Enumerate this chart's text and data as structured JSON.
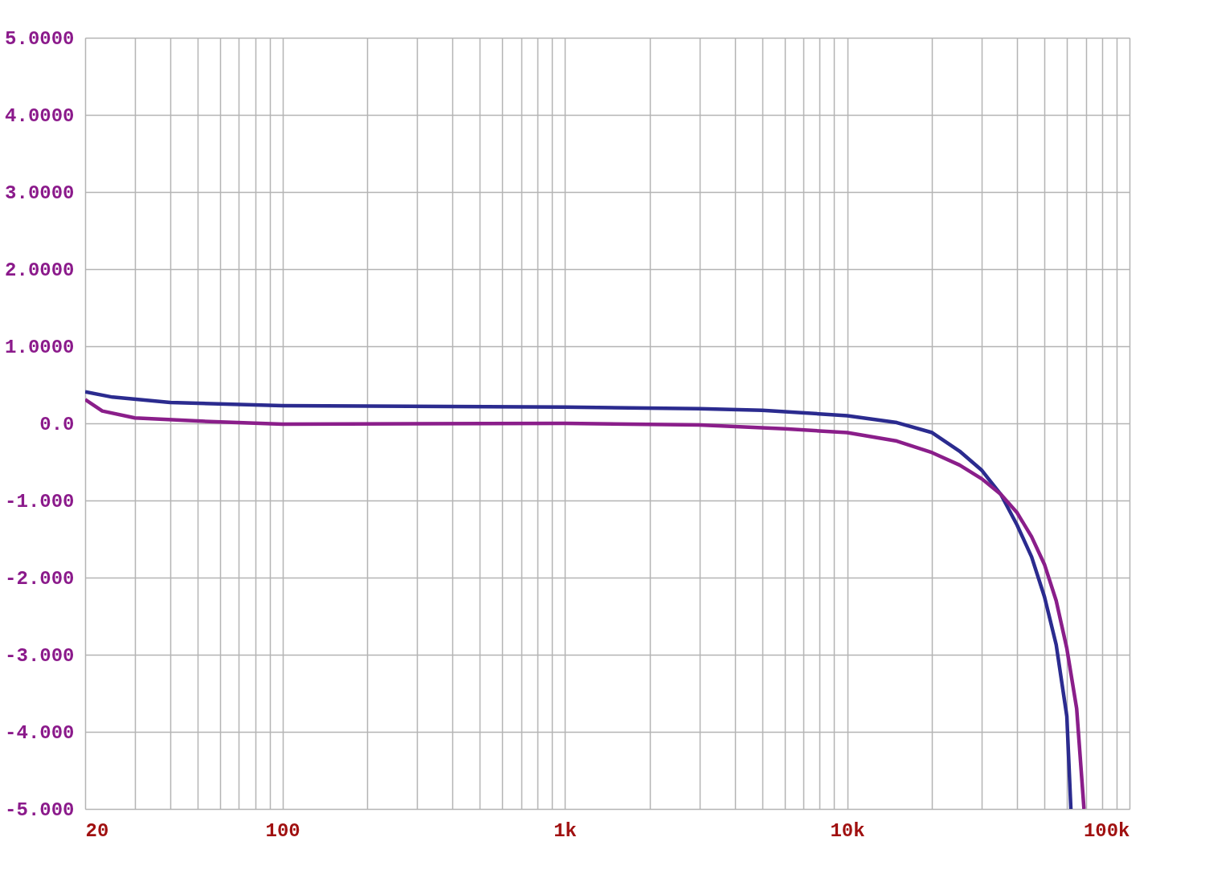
{
  "chart_data": {
    "type": "line",
    "log": "x",
    "grid": true,
    "marker": "none",
    "line_style": "solid",
    "xlim": [
      20,
      100000
    ],
    "ylim": [
      -5,
      5
    ],
    "xticks": [
      20,
      {
        "value": 30,
        "label": null
      },
      {
        "value": 40,
        "label": null
      },
      {
        "value": 50,
        "label": null
      },
      {
        "value": 60,
        "label": null
      },
      {
        "value": 70,
        "label": null
      },
      {
        "value": 80,
        "label": null
      },
      {
        "value": 90,
        "label": null
      },
      100,
      {
        "value": 200,
        "label": null
      },
      {
        "value": 300,
        "label": null
      },
      {
        "value": 400,
        "label": null
      },
      {
        "value": 500,
        "label": null
      },
      {
        "value": 600,
        "label": null
      },
      {
        "value": 700,
        "label": null
      },
      {
        "value": 800,
        "label": null
      },
      {
        "value": 900,
        "label": null
      },
      {
        "value": 1000,
        "label": "1k"
      },
      {
        "value": 2000,
        "label": null
      },
      {
        "value": 3000,
        "label": null
      },
      {
        "value": 4000,
        "label": null
      },
      {
        "value": 5000,
        "label": null
      },
      {
        "value": 6000,
        "label": null
      },
      {
        "value": 7000,
        "label": null
      },
      {
        "value": 8000,
        "label": null
      },
      {
        "value": 9000,
        "label": null
      },
      {
        "value": 10000,
        "label": "10k"
      },
      {
        "value": 20000,
        "label": null
      },
      {
        "value": 30000,
        "label": null
      },
      {
        "value": 40000,
        "label": null
      },
      {
        "value": 50000,
        "label": null
      },
      {
        "value": 60000,
        "label": null
      },
      {
        "value": 70000,
        "label": null
      },
      {
        "value": 80000,
        "label": null
      },
      {
        "value": 90000,
        "label": null
      },
      {
        "value": 100000,
        "label": "100k"
      }
    ],
    "yticks": [
      {
        "value": 5,
        "label": "5.0000"
      },
      {
        "value": 4,
        "label": "4.0000"
      },
      {
        "value": 3,
        "label": "3.0000"
      },
      {
        "value": 2,
        "label": "2.0000"
      },
      {
        "value": 1,
        "label": "1.0000"
      },
      {
        "value": 0,
        "label": "0.0"
      },
      {
        "value": -1,
        "label": "-1.000"
      },
      {
        "value": -2,
        "label": "-2.000"
      },
      {
        "value": -3,
        "label": "-3.000"
      },
      {
        "value": -4,
        "label": "-4.000"
      },
      {
        "value": -5,
        "label": "-5.000"
      }
    ],
    "series": [
      {
        "color": "#2b2b8f",
        "x": [
          20,
          25,
          40,
          100,
          1000,
          3000,
          5000,
          10000,
          15000,
          20000,
          25000,
          30000,
          35000,
          40000,
          45000,
          50000,
          55000,
          60000,
          62000
        ],
        "values": [
          0.41,
          0.34,
          0.27,
          0.23,
          0.21,
          0.19,
          0.17,
          0.1,
          0.01,
          -0.12,
          -0.36,
          -0.61,
          -0.92,
          -1.32,
          -1.73,
          -2.25,
          -2.87,
          -3.8,
          -5.0
        ]
      },
      {
        "color": "#8a1e8a",
        "x": [
          20,
          23,
          30,
          50,
          100,
          1000,
          3000,
          6000,
          10000,
          15000,
          20000,
          25000,
          30000,
          35000,
          40000,
          45000,
          50000,
          55000,
          60000,
          65000,
          69000
        ],
        "values": [
          0.31,
          0.16,
          0.07,
          0.03,
          -0.01,
          0,
          -0.02,
          -0.07,
          -0.12,
          -0.23,
          -0.38,
          -0.54,
          -0.72,
          -0.92,
          -1.16,
          -1.47,
          -1.83,
          -2.3,
          -2.92,
          -3.7,
          -5.0
        ]
      }
    ]
  }
}
